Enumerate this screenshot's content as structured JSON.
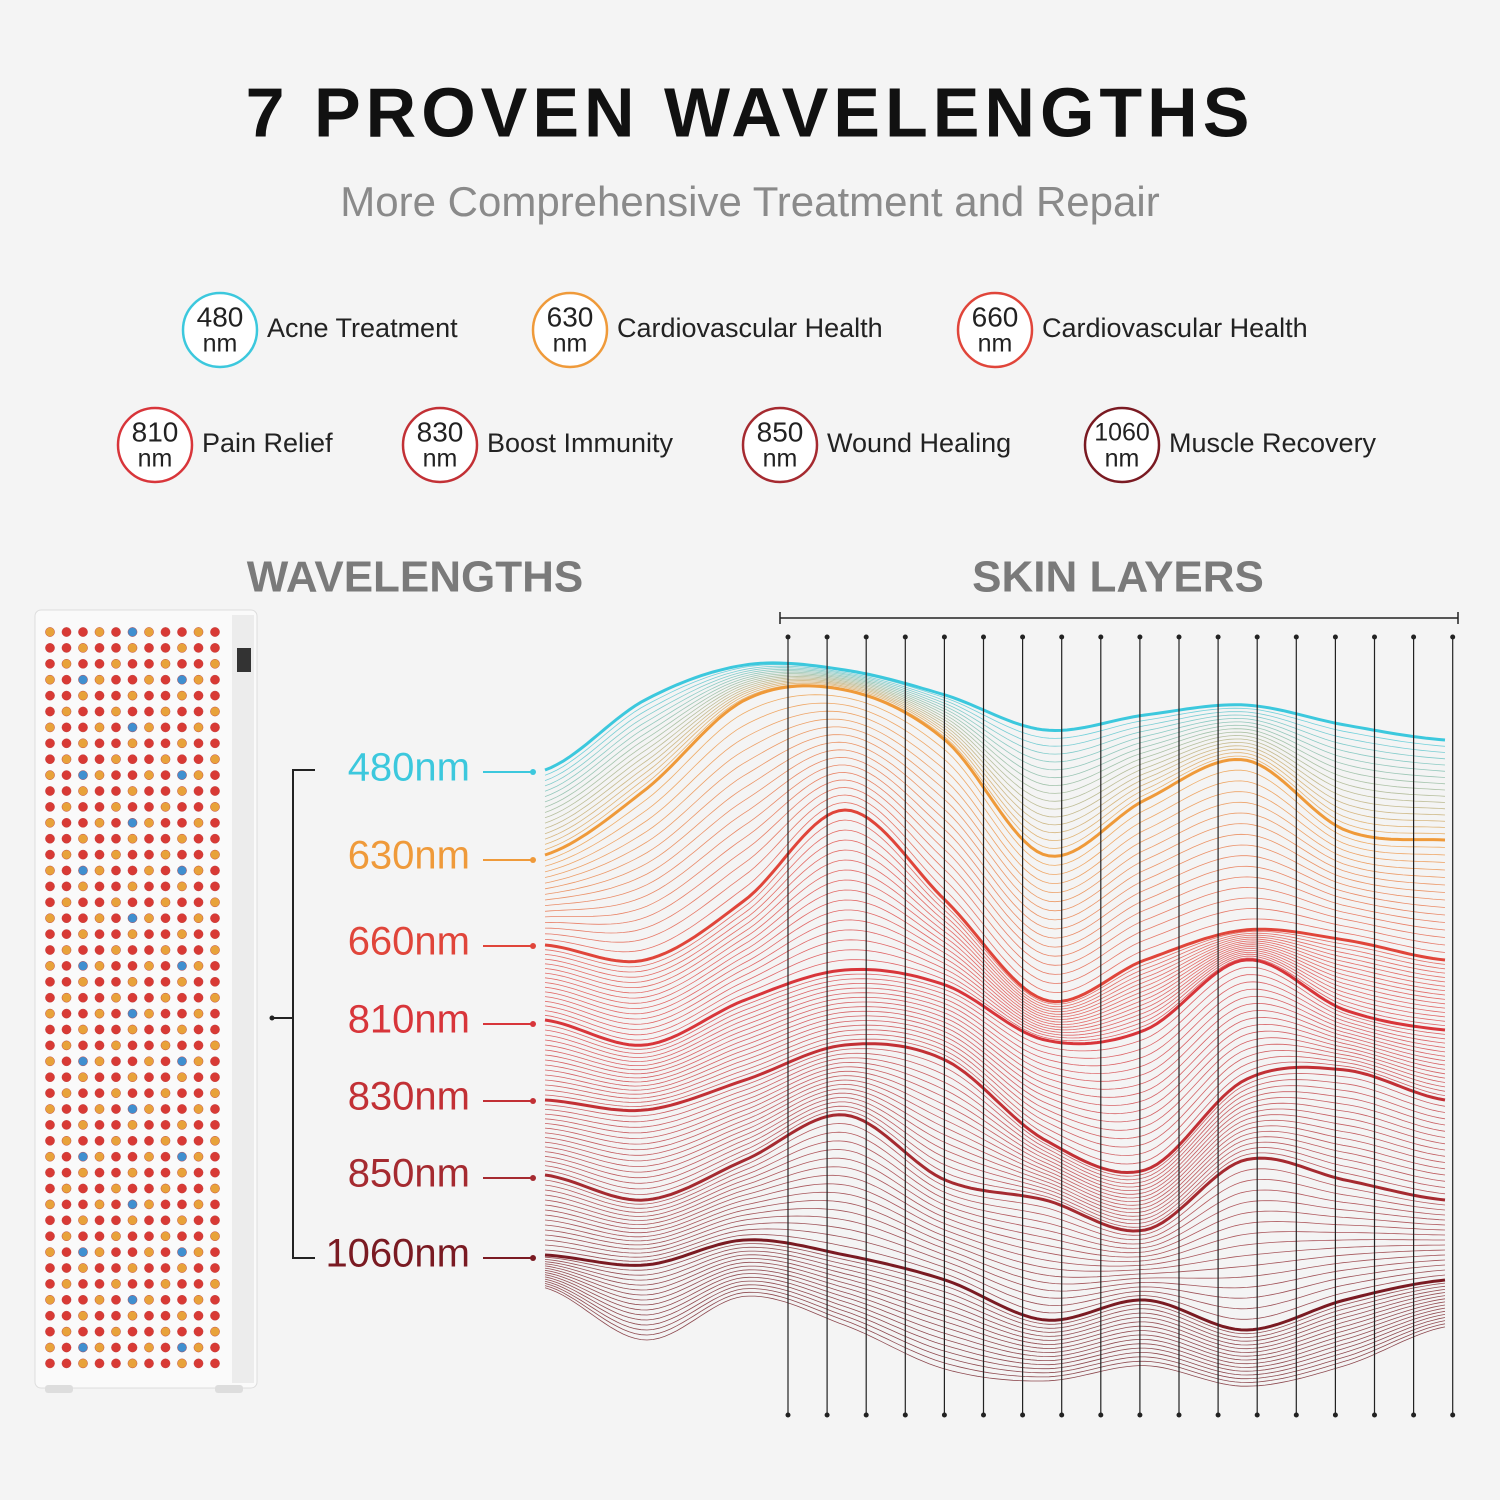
{
  "header": {
    "title": "7 PROVEN WAVELENGTHS",
    "subtitle": "More Comprehensive Treatment and Repair"
  },
  "badges": [
    {
      "value": "480",
      "unit": "nm",
      "label": "Acne Treatment",
      "color": "#3cc8dd"
    },
    {
      "value": "630",
      "unit": "nm",
      "label": "Cardiovascular Health",
      "color": "#ef9a3a"
    },
    {
      "value": "660",
      "unit": "nm",
      "label": "Cardiovascular Health",
      "color": "#e0453a"
    },
    {
      "value": "810",
      "unit": "nm",
      "label": "Pain Relief",
      "color": "#d8353a"
    },
    {
      "value": "830",
      "unit": "nm",
      "label": "Boost Immunity",
      "color": "#c23035"
    },
    {
      "value": "850",
      "unit": "nm",
      "label": "Wound Healing",
      "color": "#a52a30"
    },
    {
      "value": "1060",
      "unit": "nm",
      "label": "Muscle Recovery",
      "color": "#7a1a22"
    }
  ],
  "sections": {
    "wavelengths": "WAVELENGTHS",
    "skin_layers": "SKIN LAYERS"
  },
  "wavelength_labels": [
    "480nm",
    "630nm",
    "660nm",
    "810nm",
    "830nm",
    "850nm",
    "1060nm"
  ]
}
